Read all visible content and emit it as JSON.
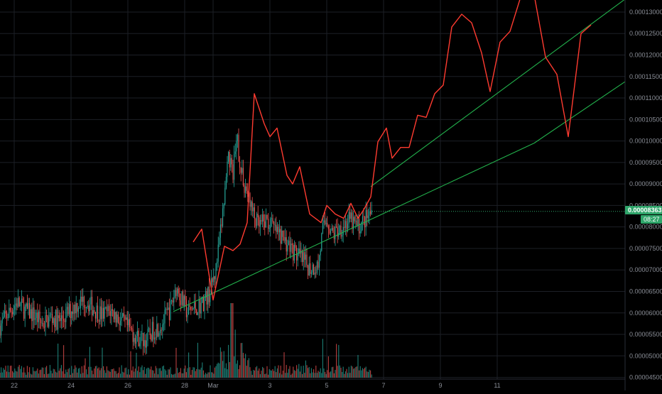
{
  "chart_data": {
    "type": "candlestick",
    "colors": {
      "background": "#000000",
      "grid": "#1c1f26",
      "up": "#26a69a",
      "down": "#ef5350",
      "up_volume": "#26a69a",
      "down_volume": "#ef5350",
      "projection": "#ff3b30",
      "trendline": "#22b14c",
      "axis_text": "#8a8e97",
      "price_tag": "#2fa56a"
    },
    "y_axis": {
      "range": [
        4.46e-05,
        0.0001328
      ],
      "tick_labels": [
        "0.00013000",
        "0.00012500",
        "0.00012000",
        "0.00011500",
        "0.00011000",
        "0.00010500",
        "0.00010000",
        "0.00009500",
        "0.00009000",
        "0.00008500",
        "0.00008000",
        "0.00007500",
        "0.00007000",
        "0.00006500",
        "0.00006000",
        "0.00005500",
        "0.00005000",
        "0.00004500"
      ],
      "tick_values": [
        0.00013,
        0.000125,
        0.00012,
        0.000115,
        0.00011,
        0.000105,
        0.0001,
        9.5e-05,
        9e-05,
        8.5e-05,
        8e-05,
        7.5e-05,
        7e-05,
        6.5e-05,
        6e-05,
        5.5e-05,
        5e-05,
        4.5e-05
      ]
    },
    "x_axis": {
      "range": [
        21.5,
        43.5
      ],
      "tick_labels": [
        "22",
        "24",
        "26",
        "28",
        "Mar",
        "3",
        "5",
        "7",
        "9",
        "11"
      ],
      "tick_days": [
        22,
        24,
        26,
        28,
        29,
        31,
        33,
        35,
        37,
        39
      ]
    },
    "current_price": {
      "label": "0.00008363",
      "value": 8.363e-05
    },
    "countdown": {
      "label": "08:27"
    },
    "price_path": [
      [
        21.5,
        5.7e-05
      ],
      [
        21.8,
        6e-05
      ],
      [
        22.1,
        6.25e-05
      ],
      [
        22.4,
        6.05e-05
      ],
      [
        22.7,
        5.95e-05
      ],
      [
        23.0,
        5.75e-05
      ],
      [
        23.3,
        5.9e-05
      ],
      [
        23.6,
        5.8e-05
      ],
      [
        23.9,
        6e-05
      ],
      [
        24.2,
        6.2e-05
      ],
      [
        24.5,
        6.3e-05
      ],
      [
        24.8,
        6.1e-05
      ],
      [
        25.1,
        5.95e-05
      ],
      [
        25.4,
        6.05e-05
      ],
      [
        25.7,
        5.85e-05
      ],
      [
        26.0,
        5.65e-05
      ],
      [
        26.3,
        5.45e-05
      ],
      [
        26.6,
        5.35e-05
      ],
      [
        26.9,
        5.6e-05
      ],
      [
        27.2,
        5.75e-05
      ],
      [
        27.5,
        6.1e-05
      ],
      [
        27.7,
        6.6e-05
      ],
      [
        27.9,
        6.3e-05
      ],
      [
        28.1,
        6e-05
      ],
      [
        28.3,
        6.1e-05
      ],
      [
        28.6,
        6.2e-05
      ],
      [
        28.9,
        6.5e-05
      ],
      [
        29.1,
        7e-05
      ],
      [
        29.25,
        7.8e-05
      ],
      [
        29.4,
        8.7e-05
      ],
      [
        29.55,
        9.6e-05
      ],
      [
        29.7,
        9.3e-05
      ],
      [
        29.85,
        0.0001
      ],
      [
        30.0,
        9.2e-05
      ],
      [
        30.2,
        8.8e-05
      ],
      [
        30.4,
        8.3e-05
      ],
      [
        30.6,
        8e-05
      ],
      [
        30.9,
        8.15e-05
      ],
      [
        31.2,
        7.9e-05
      ],
      [
        31.5,
        7.7e-05
      ],
      [
        31.8,
        7.45e-05
      ],
      [
        32.1,
        7.25e-05
      ],
      [
        32.4,
        7.05e-05
      ],
      [
        32.7,
        7.1e-05
      ],
      [
        32.85,
        7.9e-05
      ],
      [
        33.0,
        8.2e-05
      ],
      [
        33.2,
        7.8e-05
      ],
      [
        33.5,
        8e-05
      ],
      [
        33.8,
        8.15e-05
      ],
      [
        34.1,
        8e-05
      ],
      [
        34.4,
        8.2e-05
      ],
      [
        34.6,
        8.36e-05
      ]
    ],
    "projection": [
      [
        28.3,
        7.65e-05
      ],
      [
        28.6,
        7.95e-05
      ],
      [
        29.0,
        6.3e-05
      ],
      [
        29.4,
        7.55e-05
      ],
      [
        29.7,
        7.45e-05
      ],
      [
        29.95,
        7.6e-05
      ],
      [
        30.2,
        8.1e-05
      ],
      [
        30.45,
        0.000111
      ],
      [
        30.8,
        0.000104
      ],
      [
        31.0,
        0.000101
      ],
      [
        31.25,
        0.000103
      ],
      [
        31.6,
        9.2e-05
      ],
      [
        31.8,
        9e-05
      ],
      [
        32.05,
        9.4e-05
      ],
      [
        32.4,
        8.3e-05
      ],
      [
        32.8,
        8.1e-05
      ],
      [
        33.0,
        8.5e-05
      ],
      [
        33.3,
        8.3e-05
      ],
      [
        33.6,
        8.2e-05
      ],
      [
        33.85,
        8.55e-05
      ],
      [
        34.1,
        8.2e-05
      ],
      [
        34.3,
        8.4e-05
      ],
      [
        34.55,
        8.7e-05
      ],
      [
        34.8,
        9.98e-05
      ],
      [
        35.1,
        0.000103
      ],
      [
        35.3,
        9.6e-05
      ],
      [
        35.6,
        9.85e-05
      ],
      [
        35.9,
        9.85e-05
      ],
      [
        36.2,
        0.000106
      ],
      [
        36.5,
        0.0001055
      ],
      [
        36.8,
        0.000111
      ],
      [
        37.1,
        0.000113
      ],
      [
        37.4,
        0.0001265
      ],
      [
        37.75,
        0.0001295
      ],
      [
        38.1,
        0.0001275
      ],
      [
        38.45,
        0.0001205
      ],
      [
        38.75,
        0.0001115
      ],
      [
        39.1,
        0.000123
      ],
      [
        39.45,
        0.0001255
      ],
      [
        39.85,
        0.000134
      ],
      [
        40.3,
        0.000134
      ],
      [
        40.7,
        0.0001195
      ],
      [
        41.1,
        0.0001155
      ],
      [
        41.5,
        0.000101
      ],
      [
        41.95,
        0.000125
      ],
      [
        42.3,
        0.000127
      ]
    ],
    "trendlines": [
      {
        "start": [
          27.6,
          6.03e-05
        ],
        "end": [
          40.3,
          9.95e-05
        ]
      },
      {
        "start": [
          34.55,
          8.94e-05
        ],
        "end": [
          43.5,
          0.000133
        ]
      },
      {
        "start": [
          40.3,
          9.95e-05
        ],
        "end": [
          43.5,
          0.0001138
        ]
      }
    ]
  }
}
